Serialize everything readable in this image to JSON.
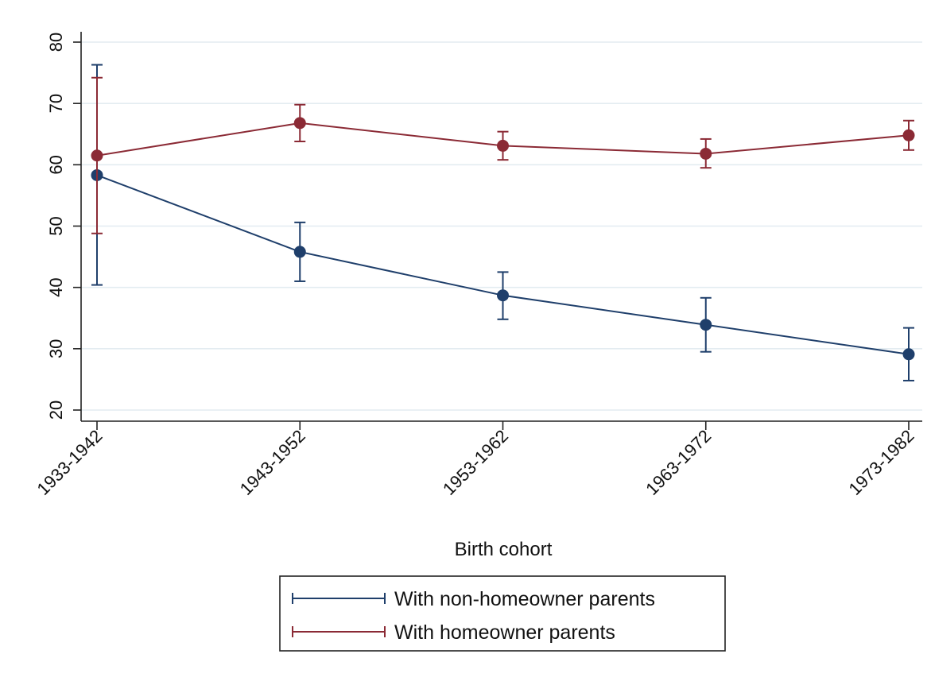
{
  "chart_data": {
    "type": "line",
    "title": "",
    "xlabel": "Birth cohort",
    "ylabel": "",
    "categories": [
      "1933-1942",
      "1943-1952",
      "1953-1962",
      "1963-1972",
      "1973-1982"
    ],
    "ylim": [
      20,
      80
    ],
    "yticks": [
      20,
      30,
      40,
      50,
      60,
      70,
      80
    ],
    "grid": true,
    "legend_position": "bottom",
    "series": [
      {
        "name": "With non-homeowner parents",
        "color": "#1f3f6b",
        "values": [
          58.3,
          45.8,
          38.7,
          33.9,
          29.1
        ],
        "ci_low": [
          40.4,
          41.0,
          34.8,
          29.5,
          24.8
        ],
        "ci_high": [
          76.3,
          50.6,
          42.5,
          38.3,
          33.4
        ]
      },
      {
        "name": "With homeowner parents",
        "color": "#8b2a35",
        "values": [
          61.5,
          66.8,
          63.1,
          61.8,
          64.8
        ],
        "ci_low": [
          48.8,
          63.8,
          60.8,
          59.5,
          62.4
        ],
        "ci_high": [
          74.2,
          69.8,
          65.4,
          64.2,
          67.2
        ]
      }
    ]
  }
}
